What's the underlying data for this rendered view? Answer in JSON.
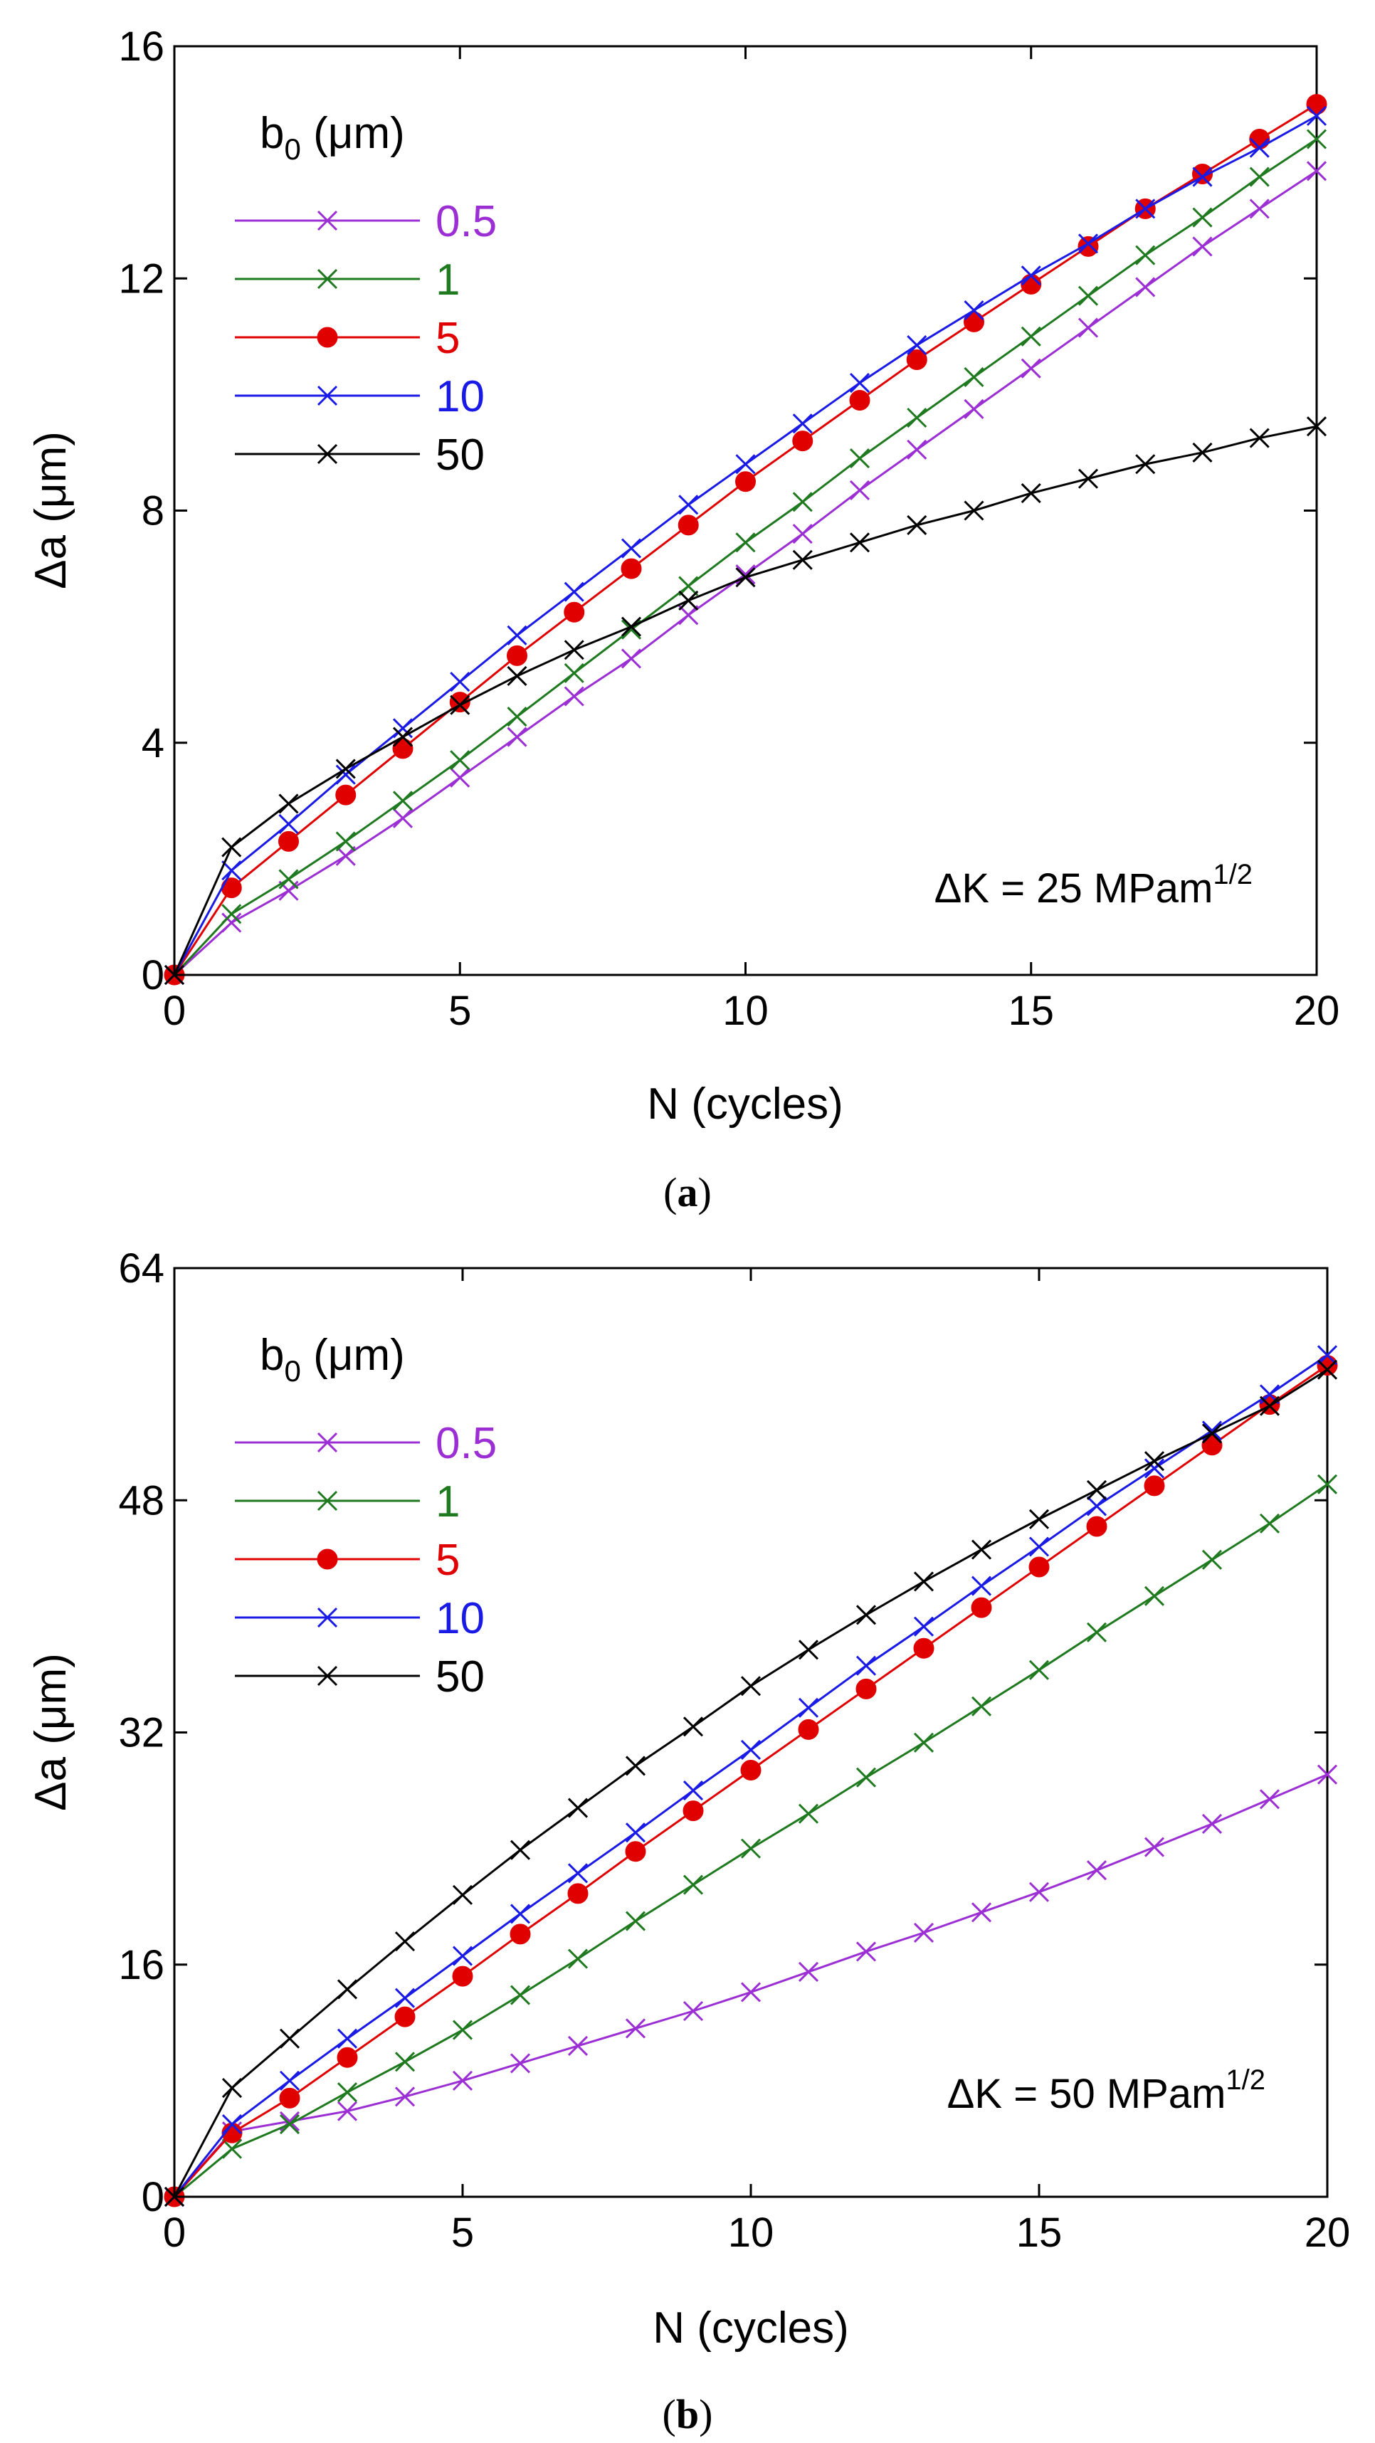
{
  "colors": {
    "0.5": "#9b2fd4",
    "1": "#1f7a1f",
    "5": "#e00000",
    "10": "#1a1ae6",
    "50": "#000000"
  },
  "chart_data": [
    {
      "type": "line",
      "caption_letter": "a",
      "xlabel": "N (cycles)",
      "ylabel": "Δa (μm)",
      "xlim": [
        0,
        20
      ],
      "ylim": [
        0,
        16
      ],
      "xticks": [
        0,
        5,
        10,
        15,
        20
      ],
      "yticks": [
        0,
        4,
        8,
        12,
        16
      ],
      "legend_title": "b0 (μm)",
      "legend_title_main": "b",
      "legend_title_sub": "0",
      "legend_title_rest": " (μm)",
      "legend_placement": "top-left",
      "annotation_main": "ΔK = 25 MPam",
      "annotation_sup": "1/2",
      "x": [
        0,
        1,
        2,
        3,
        4,
        5,
        6,
        7,
        8,
        9,
        10,
        11,
        12,
        13,
        14,
        15,
        16,
        17,
        18,
        19,
        20
      ],
      "series": [
        {
          "name": "0.5",
          "marker": "x",
          "values": [
            0,
            0.9,
            1.45,
            2.05,
            2.7,
            3.4,
            4.1,
            4.8,
            5.45,
            6.2,
            6.9,
            7.6,
            8.35,
            9.05,
            9.75,
            10.45,
            11.15,
            11.85,
            12.55,
            13.2,
            13.85
          ]
        },
        {
          "name": "1",
          "marker": "x",
          "values": [
            0,
            1.05,
            1.65,
            2.3,
            3.0,
            3.7,
            4.45,
            5.2,
            5.95,
            6.7,
            7.45,
            8.15,
            8.9,
            9.6,
            10.3,
            11.0,
            11.7,
            12.4,
            13.05,
            13.75,
            14.4
          ]
        },
        {
          "name": "5",
          "marker": "o",
          "values": [
            0,
            1.5,
            2.3,
            3.1,
            3.9,
            4.7,
            5.5,
            6.25,
            7.0,
            7.75,
            8.5,
            9.2,
            9.9,
            10.6,
            11.25,
            11.9,
            12.55,
            13.2,
            13.8,
            14.4,
            15.0
          ]
        },
        {
          "name": "10",
          "marker": "x",
          "values": [
            0,
            1.8,
            2.6,
            3.45,
            4.25,
            5.05,
            5.85,
            6.6,
            7.35,
            8.1,
            8.8,
            9.5,
            10.2,
            10.85,
            11.45,
            12.05,
            12.6,
            13.2,
            13.75,
            14.25,
            14.8
          ]
        },
        {
          "name": "50",
          "marker": "x",
          "values": [
            0,
            2.2,
            2.95,
            3.55,
            4.1,
            4.65,
            5.15,
            5.6,
            6.0,
            6.45,
            6.85,
            7.15,
            7.45,
            7.75,
            8.0,
            8.3,
            8.55,
            8.8,
            9.0,
            9.25,
            9.45
          ]
        }
      ]
    },
    {
      "type": "line",
      "caption_letter": "b",
      "xlabel": "N (cycles)",
      "ylabel": "Δa (μm)",
      "xlim": [
        0,
        20
      ],
      "ylim": [
        0,
        64
      ],
      "xticks": [
        0,
        5,
        10,
        15,
        20
      ],
      "yticks": [
        0,
        16,
        32,
        48,
        64
      ],
      "legend_title": "b0 (μm)",
      "legend_title_main": "b",
      "legend_title_sub": "0",
      "legend_title_rest": " (μm)",
      "legend_placement": "top-left",
      "annotation_main": "ΔK = 50 MPam",
      "annotation_sup": "1/2",
      "x": [
        0,
        1,
        2,
        3,
        4,
        5,
        6,
        7,
        8,
        9,
        10,
        11,
        12,
        13,
        14,
        15,
        16,
        17,
        18,
        19,
        20
      ],
      "series": [
        {
          "name": "0.5",
          "marker": "x",
          "values": [
            0,
            4.5,
            5.2,
            5.9,
            6.9,
            8.0,
            9.2,
            10.4,
            11.6,
            12.8,
            14.1,
            15.5,
            16.9,
            18.2,
            19.6,
            21.0,
            22.5,
            24.1,
            25.7,
            27.4,
            29.1
          ]
        },
        {
          "name": "1",
          "marker": "x",
          "values": [
            0,
            3.3,
            5.0,
            7.2,
            9.3,
            11.5,
            13.9,
            16.4,
            19.0,
            21.5,
            24.0,
            26.4,
            28.9,
            31.3,
            33.8,
            36.3,
            38.9,
            41.4,
            43.9,
            46.4,
            49.1
          ]
        },
        {
          "name": "5",
          "marker": "o",
          "values": [
            0,
            4.4,
            6.8,
            9.6,
            12.4,
            15.2,
            18.1,
            20.9,
            23.8,
            26.6,
            29.4,
            32.2,
            35.0,
            37.8,
            40.6,
            43.4,
            46.2,
            49.0,
            51.8,
            54.6,
            57.3
          ]
        },
        {
          "name": "10",
          "marker": "x",
          "values": [
            0,
            5.0,
            8.0,
            10.9,
            13.7,
            16.6,
            19.5,
            22.3,
            25.1,
            28.0,
            30.8,
            33.7,
            36.6,
            39.3,
            42.1,
            44.8,
            47.6,
            50.2,
            52.8,
            55.3,
            58.0
          ]
        },
        {
          "name": "50",
          "marker": "x",
          "values": [
            0,
            7.5,
            10.9,
            14.3,
            17.6,
            20.8,
            23.9,
            26.8,
            29.7,
            32.4,
            35.2,
            37.7,
            40.1,
            42.4,
            44.6,
            46.7,
            48.7,
            50.7,
            52.6,
            54.5,
            57.0
          ]
        }
      ]
    }
  ]
}
